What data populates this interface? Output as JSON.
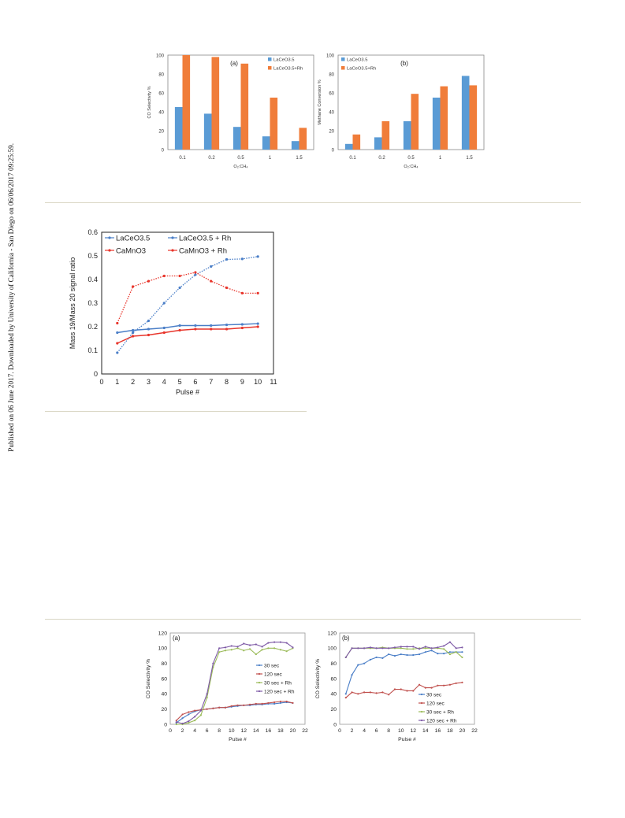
{
  "sidebar_text": "Published on 06 June 2017. Downloaded by University of California - San Diego on 06/06/2017 09:25:59.",
  "colors": {
    "blue": "#4a7ec7",
    "red": "#e8352b",
    "orange": "#f07d3a",
    "barblue": "#5a9bd5",
    "green": "#9bbb59",
    "purple": "#7e5aa6",
    "maroon": "#c0504d",
    "divider": "#d9d6c4"
  },
  "chart_data": [
    {
      "type": "bar",
      "panel_label": "(a)",
      "categories": [
        "0.1",
        "0.2",
        "0.5",
        "1",
        "1.5"
      ],
      "series": [
        {
          "name": "LaCeO3.5",
          "values": [
            45,
            38,
            24,
            14,
            9
          ]
        },
        {
          "name": "LaCeO3.5+Rh",
          "values": [
            100,
            98,
            91,
            55,
            23
          ]
        }
      ],
      "ylabel": "CO Selectivity %",
      "xlabel": "O₂:CH₄",
      "ylim": [
        0,
        100
      ],
      "yticks": [
        "0",
        "20",
        "40",
        "60",
        "80",
        "100"
      ],
      "legend": "top-right"
    },
    {
      "type": "bar",
      "panel_label": "(b)",
      "categories": [
        "0.1",
        "0.2",
        "0.5",
        "1",
        "1.5"
      ],
      "series": [
        {
          "name": "LaCeO3.5",
          "values": [
            6,
            13,
            30,
            55,
            78
          ]
        },
        {
          "name": "LaCeO3.5+Rh",
          "values": [
            16,
            30,
            59,
            67,
            68
          ]
        }
      ],
      "ylabel": "Methane Conversion %",
      "xlabel": "O₂:CH₄",
      "ylim": [
        0,
        100
      ],
      "yticks": [
        "0",
        "20",
        "40",
        "60",
        "80",
        "100"
      ],
      "legend": "top-left"
    },
    {
      "type": "line",
      "x": [
        1,
        2,
        3,
        4,
        5,
        6,
        7,
        8,
        9,
        10
      ],
      "series": [
        {
          "name": "LaCeO3.5",
          "values": [
            0.175,
            0.185,
            0.19,
            0.195,
            0.205,
            0.205,
            0.205,
            0.208,
            0.21,
            0.213
          ]
        },
        {
          "name": "LaCeO3.5 + Rh",
          "values": [
            0.09,
            0.175,
            0.225,
            0.3,
            0.365,
            0.42,
            0.455,
            0.485,
            0.487,
            0.497
          ]
        },
        {
          "name": "CaMnO3",
          "values": [
            0.13,
            0.16,
            0.165,
            0.175,
            0.185,
            0.19,
            0.19,
            0.19,
            0.195,
            0.2
          ]
        },
        {
          "name": "CaMnO3 + Rh",
          "values": [
            0.215,
            0.37,
            0.393,
            0.415,
            0.415,
            0.43,
            0.393,
            0.365,
            0.342,
            0.342
          ]
        }
      ],
      "ylabel": "Mass 19/Mass 20 signal ratio",
      "xlabel": "Pulse #",
      "xlim": [
        0,
        11
      ],
      "ylim": [
        0,
        0.6
      ],
      "xticks": [
        "0",
        "1",
        "2",
        "3",
        "4",
        "5",
        "6",
        "7",
        "8",
        "9",
        "10",
        "11"
      ],
      "yticks": [
        "0",
        "0.1",
        "0.2",
        "0.3",
        "0.4",
        "0.5",
        "0.6"
      ],
      "legend": "top"
    },
    {
      "type": "line",
      "panel_label": "(a)",
      "x": [
        1,
        2,
        3,
        4,
        5,
        6,
        7,
        8,
        9,
        10,
        11,
        12,
        13,
        14,
        15,
        16,
        17,
        18,
        19,
        20
      ],
      "series": [
        {
          "name": "30 sec",
          "values": [
            2,
            8,
            13,
            17,
            19,
            20,
            21,
            22,
            22,
            23,
            24,
            25,
            25,
            26,
            26,
            27,
            27,
            28,
            29,
            28
          ]
        },
        {
          "name": "120 sec",
          "values": [
            5,
            13,
            16,
            18,
            19,
            20,
            21,
            22,
            22,
            24,
            25,
            25,
            26,
            27,
            27,
            28,
            29,
            30,
            30,
            28
          ]
        },
        {
          "name": "30 sec + Rh",
          "values": [
            0,
            0,
            2,
            5,
            12,
            35,
            75,
            95,
            97,
            98,
            100,
            97,
            99,
            92,
            98,
            100,
            100,
            98,
            96,
            100
          ]
        },
        {
          "name": "120 sec + Rh",
          "values": [
            3,
            1,
            4,
            10,
            18,
            40,
            80,
            100,
            101,
            103,
            102,
            106,
            104,
            105,
            102,
            107,
            108,
            108,
            107,
            101
          ]
        }
      ],
      "ylabel": "CO Selectivity %",
      "xlabel": "Pulse #",
      "xlim": [
        0,
        22
      ],
      "ylim": [
        0,
        120
      ],
      "xticks": [
        "0",
        "2",
        "4",
        "6",
        "8",
        "10",
        "12",
        "14",
        "16",
        "18",
        "20",
        "22"
      ],
      "yticks": [
        "0",
        "20",
        "40",
        "60",
        "80",
        "100",
        "120"
      ],
      "legend": "right"
    },
    {
      "type": "line",
      "panel_label": "(b)",
      "x": [
        1,
        2,
        3,
        4,
        5,
        6,
        7,
        8,
        9,
        10,
        11,
        12,
        13,
        14,
        15,
        16,
        17,
        18,
        19,
        20
      ],
      "series": [
        {
          "name": "30 sec",
          "values": [
            40,
            65,
            78,
            80,
            85,
            88,
            87,
            92,
            90,
            92,
            91,
            91,
            92,
            95,
            97,
            93,
            93,
            95,
            95,
            95
          ]
        },
        {
          "name": "120 sec",
          "values": [
            35,
            42,
            40,
            42,
            42,
            41,
            42,
            39,
            46,
            46,
            44,
            44,
            52,
            48,
            48,
            51,
            51,
            52,
            54,
            55
          ]
        },
        {
          "name": "30 sec + Rh",
          "values": [
            88,
            100,
            100,
            100,
            100,
            100,
            101,
            100,
            100,
            100,
            99,
            99,
            100,
            100,
            100,
            100,
            99,
            92,
            95,
            88
          ]
        },
        {
          "name": "120 sec + Rh",
          "values": [
            88,
            100,
            100,
            100,
            101,
            100,
            100,
            100,
            101,
            102,
            102,
            102,
            99,
            102,
            100,
            101,
            103,
            108,
            100,
            101
          ]
        }
      ],
      "ylabel": "CO Selectivity %",
      "xlabel": "Pulse #",
      "xlim": [
        0,
        22
      ],
      "ylim": [
        0,
        120
      ],
      "xticks": [
        "0",
        "2",
        "4",
        "6",
        "8",
        "10",
        "12",
        "14",
        "16",
        "18",
        "20",
        "22"
      ],
      "yticks": [
        "0",
        "20",
        "40",
        "60",
        "80",
        "100",
        "120"
      ],
      "legend": "bottom-right"
    }
  ]
}
